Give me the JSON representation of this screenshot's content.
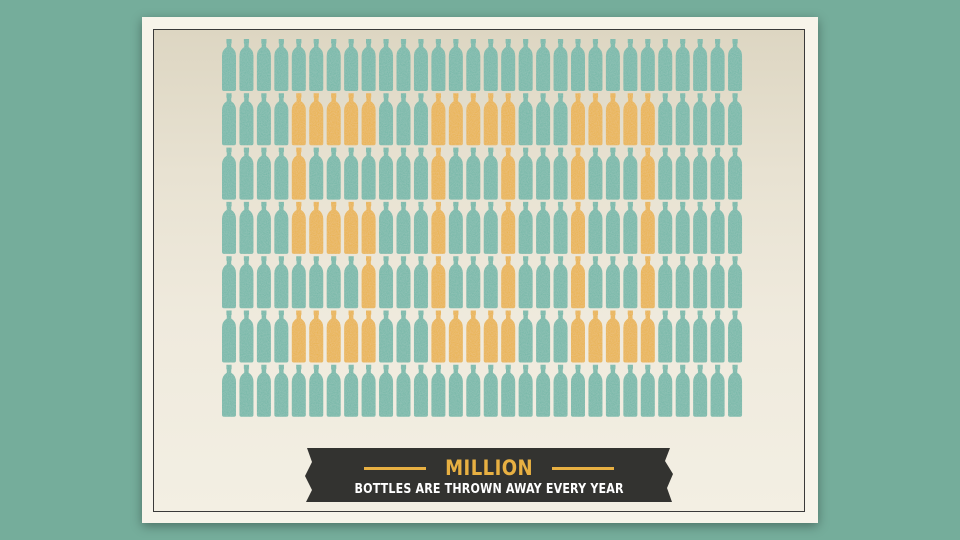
{
  "banner": {
    "headline": "MILLION",
    "subline": "BOTTLES ARE THROWN AWAY EVERY YEAR"
  },
  "bottle_grid": {
    "rows": 7,
    "columns": 30,
    "highlighted_number": "500",
    "colors": {
      "bottle": "#6fb5a5",
      "highlight": "#e8b042",
      "banner_background": "#333330",
      "page_background": "#75ad9b"
    }
  }
}
